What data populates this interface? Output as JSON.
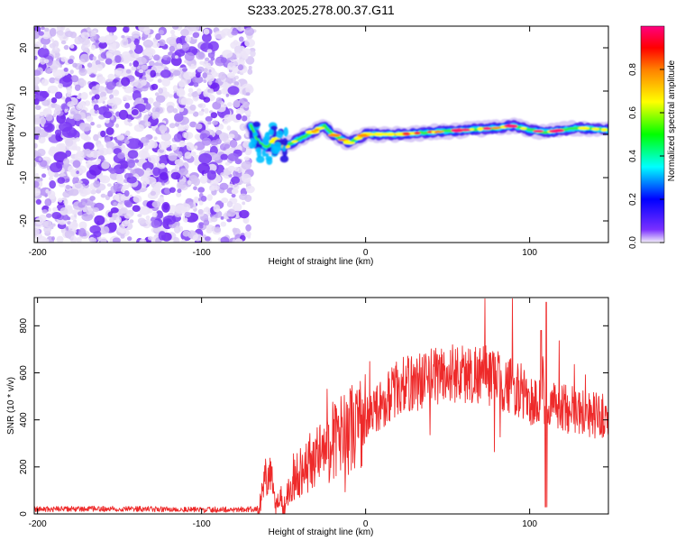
{
  "title": "S233.2025.278.00.37.G11",
  "chart_data": [
    {
      "type": "heatmap",
      "xlabel": "Height of straight line (km)",
      "ylabel": "Frequency (Hz)",
      "xlim": [
        -202,
        148
      ],
      "ylim": [
        -25,
        25
      ],
      "x_ticks": [
        -200,
        -100,
        0,
        100
      ],
      "x_tick_labels": [
        "-200",
        "-100",
        "0",
        "100"
      ],
      "y_ticks": [
        -20,
        -10,
        0,
        10,
        20
      ],
      "y_tick_labels": [
        "-20",
        "-10",
        "0",
        "10",
        "20"
      ],
      "noise_region_x": [
        -202,
        -70
      ],
      "signal_track": {
        "x": [
          -70,
          -65,
          -60,
          -55,
          -50,
          -45,
          -40,
          -35,
          -30,
          -25,
          -20,
          -15,
          -10,
          -5,
          0,
          10,
          20,
          40,
          60,
          80,
          90,
          100,
          110,
          120,
          130,
          148
        ],
        "freq": [
          2,
          -2,
          -3,
          -1,
          -3,
          -2,
          -1,
          0,
          1,
          2,
          0,
          -1,
          -2,
          -1,
          0,
          0,
          0,
          0.5,
          1,
          1.5,
          2,
          1,
          0.5,
          1,
          1.5,
          1
        ]
      },
      "colorbar": {
        "label": "Normalized spectral amplitude",
        "range": [
          0,
          1
        ],
        "ticks": [
          0,
          0.2,
          0.4,
          0.6,
          0.8
        ],
        "tick_labels": [
          "0.0",
          "0.2",
          "0.4",
          "0.6",
          "0.8"
        ],
        "colors": [
          "#f4f0fa",
          "#7a30ff",
          "#0000ff",
          "#00ffff",
          "#00ff00",
          "#ffff00",
          "#ff8000",
          "#ff0000",
          "#ff0080"
        ]
      }
    },
    {
      "type": "line",
      "xlabel": "Height of straight line (km)",
      "ylabel": "SNR (10 * v/v)",
      "xlim": [
        -202,
        148
      ],
      "ylim": [
        0,
        920
      ],
      "x_ticks": [
        -200,
        -100,
        0,
        100
      ],
      "x_tick_labels": [
        "-200",
        "-100",
        "0",
        "100"
      ],
      "y_ticks": [
        0,
        200,
        400,
        600,
        800
      ],
      "y_tick_labels": [
        "0",
        "200",
        "400",
        "600",
        "800"
      ],
      "line_color": "#ee2a2a",
      "series": [
        {
          "name": "SNR",
          "x": [
            -202,
            -150,
            -100,
            -65,
            -60,
            -57,
            -55,
            -52,
            -50,
            -45,
            -40,
            -35,
            -30,
            -20,
            -10,
            0,
            10,
            20,
            30,
            40,
            45,
            50,
            55,
            60,
            70,
            80,
            90,
            95,
            100,
            105,
            108,
            110,
            112,
            115,
            120,
            130,
            140,
            148
          ],
          "y": [
            20,
            22,
            18,
            20,
            180,
            120,
            30,
            90,
            20,
            150,
            180,
            220,
            240,
            310,
            360,
            400,
            470,
            540,
            560,
            580,
            600,
            580,
            610,
            590,
            600,
            570,
            540,
            520,
            480,
            470,
            560,
            300,
            480,
            460,
            450,
            440,
            420,
            410
          ]
        }
      ]
    }
  ]
}
